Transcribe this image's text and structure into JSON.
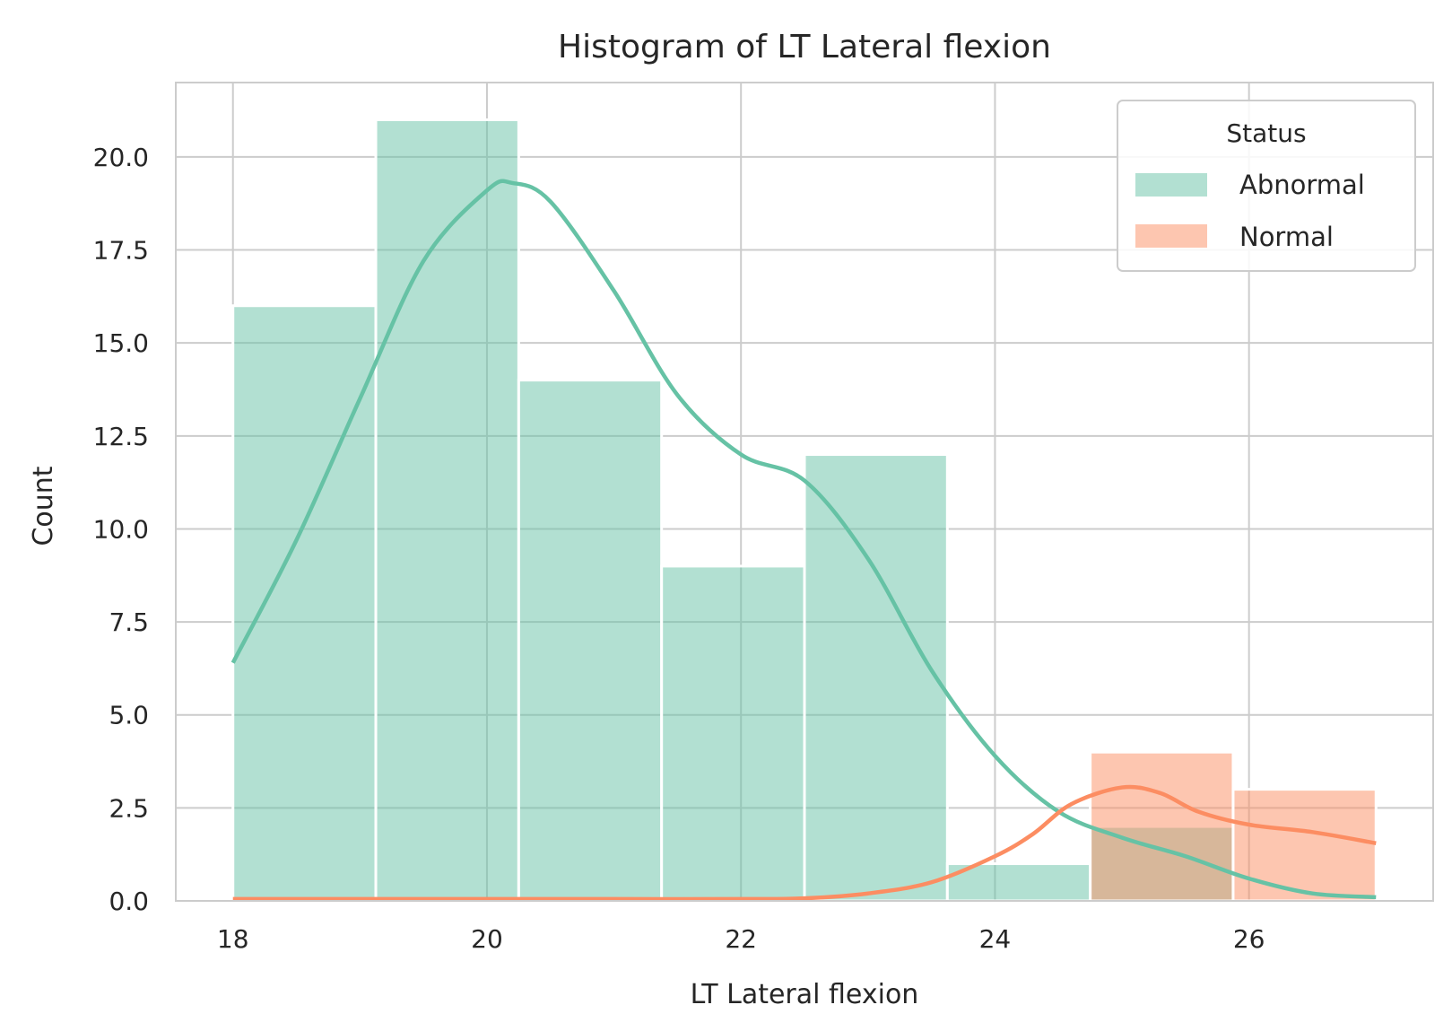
{
  "chart_data": {
    "type": "bar",
    "title": "Histogram of LT Lateral flexion",
    "xlabel": "LT Lateral flexion",
    "ylabel": "Count",
    "xlim": [
      17.55,
      27.45
    ],
    "ylim": [
      0,
      22.0
    ],
    "x_ticks": [
      18,
      20,
      22,
      24,
      26
    ],
    "x_tick_labels": [
      "18",
      "20",
      "22",
      "24",
      "26"
    ],
    "y_ticks": [
      0,
      2.5,
      5,
      7.5,
      10,
      12.5,
      15,
      17.5,
      20
    ],
    "y_tick_labels": [
      "0.0",
      "2.5",
      "5.0",
      "7.5",
      "10.0",
      "12.5",
      "15.0",
      "17.5",
      "20.0"
    ],
    "grid": true,
    "bin_edges": [
      18.0,
      19.125,
      20.25,
      21.375,
      22.5,
      23.625,
      24.75,
      25.875,
      27.0
    ],
    "legend": {
      "title": "Status",
      "position": "top-right"
    },
    "series": [
      {
        "name": "Abnormal",
        "color": "#66c2a5",
        "values": [
          16,
          21,
          14,
          9,
          12,
          1,
          2,
          0
        ],
        "kde": {
          "x": [
            18.0,
            18.5,
            19.0,
            19.5,
            20.0,
            20.2,
            20.5,
            21.0,
            21.5,
            22.0,
            22.5,
            23.0,
            23.5,
            24.0,
            24.5,
            25.0,
            25.5,
            26.0,
            26.5,
            27.0
          ],
          "y": [
            6.4,
            9.7,
            13.5,
            17.2,
            19.1,
            19.3,
            18.8,
            16.4,
            13.6,
            12.0,
            11.3,
            9.2,
            6.2,
            3.9,
            2.4,
            1.7,
            1.2,
            0.6,
            0.2,
            0.1
          ]
        }
      },
      {
        "name": "Normal",
        "color": "#fc8d62",
        "values": [
          0,
          0,
          0,
          0,
          0,
          0,
          4,
          3
        ],
        "kde": {
          "x": [
            18.0,
            20.0,
            21.0,
            22.0,
            22.5,
            23.0,
            23.5,
            24.0,
            24.3,
            24.6,
            25.0,
            25.3,
            25.6,
            26.0,
            26.5,
            27.0
          ],
          "y": [
            0.05,
            0.05,
            0.05,
            0.05,
            0.07,
            0.2,
            0.5,
            1.2,
            1.8,
            2.6,
            3.05,
            2.9,
            2.4,
            2.05,
            1.85,
            1.55
          ]
        }
      }
    ]
  }
}
